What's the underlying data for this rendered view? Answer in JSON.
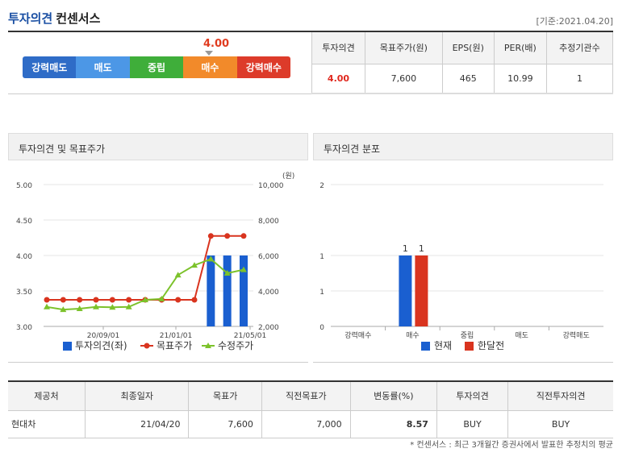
{
  "header": {
    "title_part1": "투자의견",
    "title_part2": "컨센서스",
    "date": "[기준:2021.04.20]"
  },
  "scale": {
    "score_label": "4.00",
    "score": 4.0,
    "levels": [
      {
        "label": "강력매도",
        "color": "#2f6cc7"
      },
      {
        "label": "매도",
        "color": "#4c97e6"
      },
      {
        "label": "중립",
        "color": "#3fae3a"
      },
      {
        "label": "매수",
        "color": "#f28a2a"
      },
      {
        "label": "강력매수",
        "color": "#dd3b2a"
      }
    ]
  },
  "consensus": {
    "headers": [
      "투자의견",
      "목표주가(원)",
      "EPS(원)",
      "PER(배)",
      "추정기관수"
    ],
    "values": [
      "4.00",
      "7,600",
      "465",
      "10.99",
      "1"
    ]
  },
  "panel_left_title": "투자의견 및 목표주가",
  "panel_right_title": "투자의견 분포",
  "chart_data": [
    {
      "type": "bar+line",
      "title": "투자의견 및 목표주가",
      "y_left_ticks": [
        "5.00",
        "4.50",
        "4.00",
        "3.50",
        "3.00"
      ],
      "y_left_range": [
        3.0,
        5.0
      ],
      "y_right_unit": "(원)",
      "y_right_ticks": [
        "10,000",
        "8,000",
        "6,000",
        "4,000",
        "2,000"
      ],
      "y_right_range": [
        2000,
        10000
      ],
      "x_ticks": [
        "20/09/01",
        "21/01/01",
        "21/05/01"
      ],
      "legend": [
        "투자의견(좌)",
        "목표주가",
        "수정주가"
      ],
      "series": [
        {
          "name": "투자의견(좌)",
          "kind": "bar",
          "color": "#1a5fd0",
          "values": [
            null,
            null,
            null,
            null,
            null,
            null,
            null,
            null,
            null,
            null,
            4.0,
            4.0,
            4.0
          ]
        },
        {
          "name": "목표주가",
          "kind": "line",
          "color": "#d9341f",
          "values": [
            3500,
            3500,
            3500,
            3500,
            3500,
            3500,
            3500,
            3500,
            3500,
            3500,
            7100,
            7100,
            7100
          ]
        },
        {
          "name": "수정주가",
          "kind": "line",
          "color": "#7cc22b",
          "values": [
            3100,
            2950,
            3000,
            3100,
            3080,
            3100,
            3500,
            3550,
            4900,
            5450,
            5800,
            5000,
            5200
          ]
        }
      ]
    },
    {
      "type": "bar",
      "title": "투자의견 분포",
      "categories": [
        "강력매수",
        "매수",
        "중립",
        "매도",
        "강력매도"
      ],
      "y_ticks": [
        "2",
        "1",
        "1",
        "0"
      ],
      "ylim": [
        0,
        2
      ],
      "legend": [
        "현재",
        "한달전"
      ],
      "series": [
        {
          "name": "현재",
          "color": "#1a5fd0",
          "values": [
            0,
            1,
            0,
            0,
            0
          ],
          "labels": [
            "",
            "1",
            "",
            "",
            ""
          ]
        },
        {
          "name": "한달전",
          "color": "#d9341f",
          "values": [
            0,
            1,
            0,
            0,
            0
          ],
          "labels": [
            "",
            "1",
            "",
            "",
            ""
          ]
        }
      ]
    }
  ],
  "provider": {
    "headers": [
      "제공처",
      "최종일자",
      "목표가",
      "직전목표가",
      "변동률(%)",
      "투자의견",
      "직전투자의견"
    ],
    "rows": [
      [
        "현대차",
        "21/04/20",
        "7,600",
        "7,000",
        "8.57",
        "BUY",
        "BUY"
      ]
    ]
  },
  "footnote": "* 컨센서스 : 최근 3개월간 증권사에서 발표한 추정치의 평균"
}
